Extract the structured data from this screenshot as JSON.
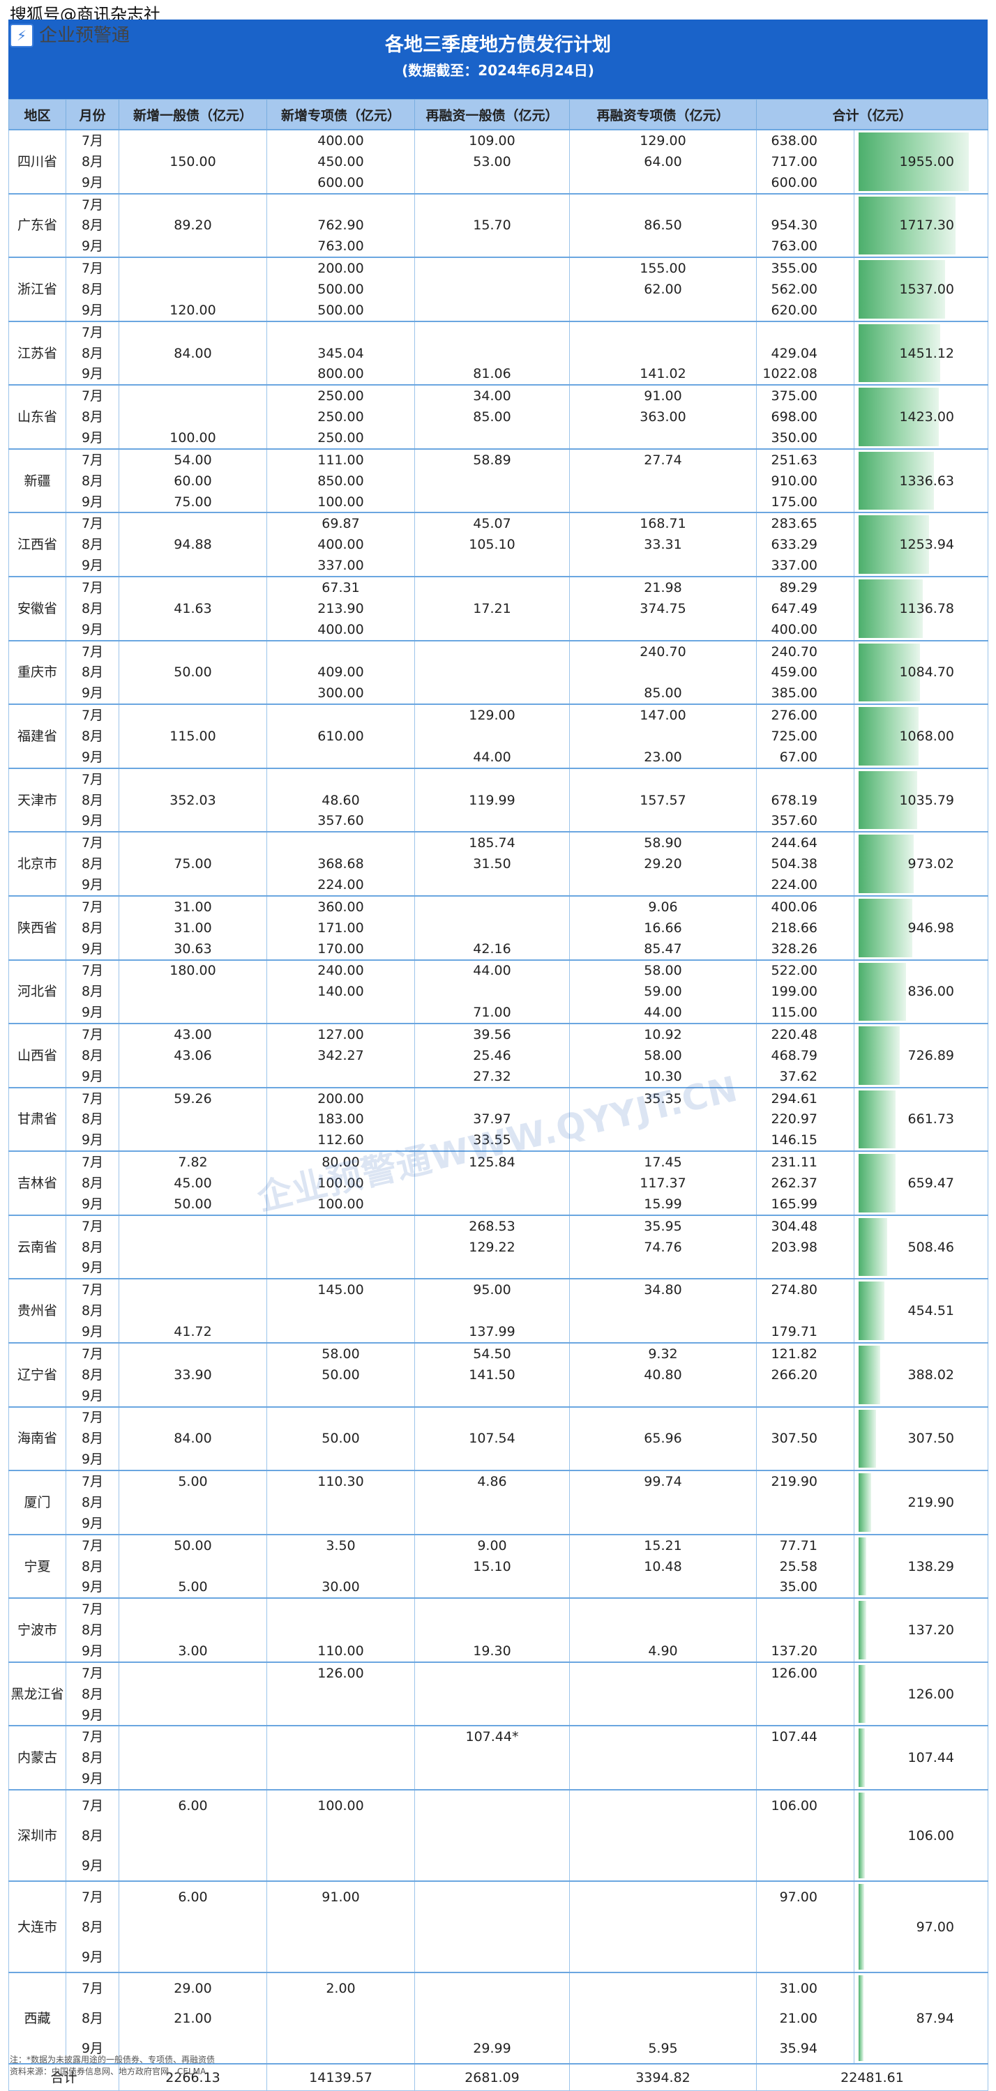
{
  "watermark_top": "搜狐号@商讯杂志社",
  "brand": "企业预警通",
  "title": "各地三季度地方债发行计划",
  "subtitle": "(数据截至：2024年6月24日)",
  "watermark_center": "企业预警通WWW.QYYJT.CN",
  "columns": [
    "地区",
    "月份",
    "新增一般债（亿元）",
    "新增专项债（亿元）",
    "再融资一般债（亿元）",
    "再融资专项债（亿元）",
    "合计（亿元）"
  ],
  "bar_max": 1955.0,
  "regions": [
    {
      "name": "四川省",
      "total": "1955.00",
      "total_value": 1955.0,
      "rows": [
        [
          "7月",
          "",
          "400.00",
          "109.00",
          "129.00",
          "638.00"
        ],
        [
          "8月",
          "150.00",
          "450.00",
          "53.00",
          "64.00",
          "717.00"
        ],
        [
          "9月",
          "",
          "600.00",
          "",
          "",
          "600.00"
        ]
      ]
    },
    {
      "name": "广东省",
      "total": "1717.30",
      "total_value": 1717.3,
      "rows": [
        [
          "7月",
          "",
          "",
          "",
          "",
          ""
        ],
        [
          "8月",
          "89.20",
          "762.90",
          "15.70",
          "86.50",
          "954.30"
        ],
        [
          "9月",
          "",
          "763.00",
          "",
          "",
          "763.00"
        ]
      ]
    },
    {
      "name": "浙江省",
      "total": "1537.00",
      "total_value": 1537.0,
      "rows": [
        [
          "7月",
          "",
          "200.00",
          "",
          "155.00",
          "355.00"
        ],
        [
          "8月",
          "",
          "500.00",
          "",
          "62.00",
          "562.00"
        ],
        [
          "9月",
          "120.00",
          "500.00",
          "",
          "",
          "620.00"
        ]
      ]
    },
    {
      "name": "江苏省",
      "total": "1451.12",
      "total_value": 1451.12,
      "rows": [
        [
          "7月",
          "",
          "",
          "",
          "",
          ""
        ],
        [
          "8月",
          "84.00",
          "345.04",
          "",
          "",
          "429.04"
        ],
        [
          "9月",
          "",
          "800.00",
          "81.06",
          "141.02",
          "1022.08"
        ]
      ]
    },
    {
      "name": "山东省",
      "total": "1423.00",
      "total_value": 1423.0,
      "rows": [
        [
          "7月",
          "",
          "250.00",
          "34.00",
          "91.00",
          "375.00"
        ],
        [
          "8月",
          "",
          "250.00",
          "85.00",
          "363.00",
          "698.00"
        ],
        [
          "9月",
          "100.00",
          "250.00",
          "",
          "",
          "350.00"
        ]
      ]
    },
    {
      "name": "新疆",
      "total": "1336.63",
      "total_value": 1336.63,
      "rows": [
        [
          "7月",
          "54.00",
          "111.00",
          "58.89",
          "27.74",
          "251.63"
        ],
        [
          "8月",
          "60.00",
          "850.00",
          "",
          "",
          "910.00"
        ],
        [
          "9月",
          "75.00",
          "100.00",
          "",
          "",
          "175.00"
        ]
      ]
    },
    {
      "name": "江西省",
      "total": "1253.94",
      "total_value": 1253.94,
      "rows": [
        [
          "7月",
          "",
          "69.87",
          "45.07",
          "168.71",
          "283.65"
        ],
        [
          "8月",
          "94.88",
          "400.00",
          "105.10",
          "33.31",
          "633.29"
        ],
        [
          "9月",
          "",
          "337.00",
          "",
          "",
          "337.00"
        ]
      ]
    },
    {
      "name": "安徽省",
      "total": "1136.78",
      "total_value": 1136.78,
      "rows": [
        [
          "7月",
          "",
          "67.31",
          "",
          "21.98",
          "89.29"
        ],
        [
          "8月",
          "41.63",
          "213.90",
          "17.21",
          "374.75",
          "647.49"
        ],
        [
          "9月",
          "",
          "400.00",
          "",
          "",
          "400.00"
        ]
      ]
    },
    {
      "name": "重庆市",
      "total": "1084.70",
      "total_value": 1084.7,
      "rows": [
        [
          "7月",
          "",
          "",
          "",
          "240.70",
          "240.70"
        ],
        [
          "8月",
          "50.00",
          "409.00",
          "",
          "",
          "459.00"
        ],
        [
          "9月",
          "",
          "300.00",
          "",
          "85.00",
          "385.00"
        ]
      ]
    },
    {
      "name": "福建省",
      "total": "1068.00",
      "total_value": 1068.0,
      "rows": [
        [
          "7月",
          "",
          "",
          "129.00",
          "147.00",
          "276.00"
        ],
        [
          "8月",
          "115.00",
          "610.00",
          "",
          "",
          "725.00"
        ],
        [
          "9月",
          "",
          "",
          "44.00",
          "23.00",
          "67.00"
        ]
      ]
    },
    {
      "name": "天津市",
      "total": "1035.79",
      "total_value": 1035.79,
      "rows": [
        [
          "7月",
          "",
          "",
          "",
          "",
          ""
        ],
        [
          "8月",
          "352.03",
          "48.60",
          "119.99",
          "157.57",
          "678.19"
        ],
        [
          "9月",
          "",
          "357.60",
          "",
          "",
          "357.60"
        ]
      ]
    },
    {
      "name": "北京市",
      "total": "973.02",
      "total_value": 973.02,
      "rows": [
        [
          "7月",
          "",
          "",
          "185.74",
          "58.90",
          "244.64"
        ],
        [
          "8月",
          "75.00",
          "368.68",
          "31.50",
          "29.20",
          "504.38"
        ],
        [
          "9月",
          "",
          "224.00",
          "",
          "",
          "224.00"
        ]
      ]
    },
    {
      "name": "陕西省",
      "total": "946.98",
      "total_value": 946.98,
      "rows": [
        [
          "7月",
          "31.00",
          "360.00",
          "",
          "9.06",
          "400.06"
        ],
        [
          "8月",
          "31.00",
          "171.00",
          "",
          "16.66",
          "218.66"
        ],
        [
          "9月",
          "30.63",
          "170.00",
          "42.16",
          "85.47",
          "328.26"
        ]
      ]
    },
    {
      "name": "河北省",
      "total": "836.00",
      "total_value": 836.0,
      "rows": [
        [
          "7月",
          "180.00",
          "240.00",
          "44.00",
          "58.00",
          "522.00"
        ],
        [
          "8月",
          "",
          "140.00",
          "",
          "59.00",
          "199.00"
        ],
        [
          "9月",
          "",
          "",
          "71.00",
          "44.00",
          "115.00"
        ]
      ]
    },
    {
      "name": "山西省",
      "total": "726.89",
      "total_value": 726.89,
      "rows": [
        [
          "7月",
          "43.00",
          "127.00",
          "39.56",
          "10.92",
          "220.48"
        ],
        [
          "8月",
          "43.06",
          "342.27",
          "25.46",
          "58.00",
          "468.79"
        ],
        [
          "9月",
          "",
          "",
          "27.32",
          "10.30",
          "37.62"
        ]
      ]
    },
    {
      "name": "甘肃省",
      "total": "661.73",
      "total_value": 661.73,
      "rows": [
        [
          "7月",
          "59.26",
          "200.00",
          "",
          "35.35",
          "294.61"
        ],
        [
          "8月",
          "",
          "183.00",
          "37.97",
          "",
          "220.97"
        ],
        [
          "9月",
          "",
          "112.60",
          "33.55",
          "",
          "146.15"
        ]
      ]
    },
    {
      "name": "吉林省",
      "total": "659.47",
      "total_value": 659.47,
      "rows": [
        [
          "7月",
          "7.82",
          "80.00",
          "125.84",
          "17.45",
          "231.11"
        ],
        [
          "8月",
          "45.00",
          "100.00",
          "",
          "117.37",
          "262.37"
        ],
        [
          "9月",
          "50.00",
          "100.00",
          "",
          "15.99",
          "165.99"
        ]
      ]
    },
    {
      "name": "云南省",
      "total": "508.46",
      "total_value": 508.46,
      "rows": [
        [
          "7月",
          "",
          "",
          "268.53",
          "35.95",
          "304.48"
        ],
        [
          "8月",
          "",
          "",
          "129.22",
          "74.76",
          "203.98"
        ],
        [
          "9月",
          "",
          "",
          "",
          "",
          ""
        ]
      ]
    },
    {
      "name": "贵州省",
      "total": "454.51",
      "total_value": 454.51,
      "rows": [
        [
          "7月",
          "",
          "145.00",
          "95.00",
          "34.80",
          "274.80"
        ],
        [
          "8月",
          "",
          "",
          "",
          "",
          ""
        ],
        [
          "9月",
          "41.72",
          "",
          "137.99",
          "",
          "179.71"
        ]
      ]
    },
    {
      "name": "辽宁省",
      "total": "388.02",
      "total_value": 388.02,
      "rows": [
        [
          "7月",
          "",
          "58.00",
          "54.50",
          "9.32",
          "121.82"
        ],
        [
          "8月",
          "33.90",
          "50.00",
          "141.50",
          "40.80",
          "266.20"
        ],
        [
          "9月",
          "",
          "",
          "",
          "",
          ""
        ]
      ]
    },
    {
      "name": "海南省",
      "total": "307.50",
      "total_value": 307.5,
      "rows": [
        [
          "7月",
          "",
          "",
          "",
          "",
          ""
        ],
        [
          "8月",
          "84.00",
          "50.00",
          "107.54",
          "65.96",
          "307.50"
        ],
        [
          "9月",
          "",
          "",
          "",
          "",
          ""
        ]
      ]
    },
    {
      "name": "厦门",
      "total": "219.90",
      "total_value": 219.9,
      "rows": [
        [
          "7月",
          "5.00",
          "110.30",
          "4.86",
          "99.74",
          "219.90"
        ],
        [
          "8月",
          "",
          "",
          "",
          "",
          ""
        ],
        [
          "9月",
          "",
          "",
          "",
          "",
          ""
        ]
      ]
    },
    {
      "name": "宁夏",
      "total": "138.29",
      "total_value": 138.29,
      "rows": [
        [
          "7月",
          "50.00",
          "3.50",
          "9.00",
          "15.21",
          "77.71"
        ],
        [
          "8月",
          "",
          "",
          "15.10",
          "10.48",
          "25.58"
        ],
        [
          "9月",
          "5.00",
          "30.00",
          "",
          "",
          "35.00"
        ]
      ]
    },
    {
      "name": "宁波市",
      "total": "137.20",
      "total_value": 137.2,
      "rows": [
        [
          "7月",
          "",
          "",
          "",
          "",
          ""
        ],
        [
          "8月",
          "",
          "",
          "",
          "",
          ""
        ],
        [
          "9月",
          "3.00",
          "110.00",
          "19.30",
          "4.90",
          "137.20"
        ]
      ]
    },
    {
      "name": "黑龙江省",
      "total": "126.00",
      "total_value": 126.0,
      "rows": [
        [
          "7月",
          "",
          "126.00",
          "",
          "",
          "126.00"
        ],
        [
          "8月",
          "",
          "",
          "",
          "",
          ""
        ],
        [
          "9月",
          "",
          "",
          "",
          "",
          ""
        ]
      ]
    },
    {
      "name": "内蒙古",
      "total": "107.44",
      "total_value": 107.44,
      "rows": [
        [
          "7月",
          "",
          "",
          "107.44*",
          "",
          "107.44"
        ],
        [
          "8月",
          "",
          "",
          "",
          "",
          ""
        ],
        [
          "9月",
          "",
          "",
          "",
          "",
          ""
        ]
      ]
    },
    {
      "name": "深圳市",
      "total": "106.00",
      "total_value": 106.0,
      "rows": [
        [
          "7月",
          "6.00",
          "100.00",
          "",
          "",
          "106.00"
        ],
        [
          "8月",
          "",
          "",
          "",
          "",
          ""
        ],
        [
          "9月",
          "",
          "",
          "",
          "",
          ""
        ]
      ]
    },
    {
      "name": "大连市",
      "total": "97.00",
      "total_value": 97.0,
      "rows": [
        [
          "7月",
          "6.00",
          "91.00",
          "",
          "",
          "97.00"
        ],
        [
          "8月",
          "",
          "",
          "",
          "",
          ""
        ],
        [
          "9月",
          "",
          "",
          "",
          "",
          ""
        ]
      ]
    },
    {
      "name": "西藏",
      "total": "87.94",
      "total_value": 87.94,
      "rows": [
        [
          "7月",
          "29.00",
          "2.00",
          "",
          "",
          "31.00"
        ],
        [
          "8月",
          "21.00",
          "",
          "",
          "",
          "21.00"
        ],
        [
          "9月",
          "",
          "",
          "29.99",
          "5.95",
          "35.94"
        ]
      ]
    }
  ],
  "sum_row": [
    "合计",
    "2266.13",
    "14139.57",
    "2681.09",
    "3394.82",
    "22481.61"
  ],
  "notes": [
    "注：*数据为未披露用途的一般债券、专项债、再融资债",
    "资料来源：中国债券信息网、地方政府官网、CELMA"
  ]
}
